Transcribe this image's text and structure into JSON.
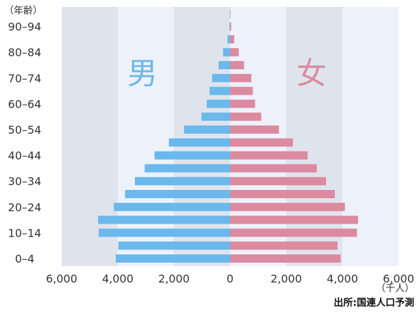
{
  "chart_data": {
    "type": "bar",
    "orientation": "horizontal",
    "layout": "population-pyramid",
    "y_unit_label": "（年齢）",
    "x_unit_label": "（千人）",
    "source": "出所:国連人口予測",
    "xlim": [
      -6000,
      6000
    ],
    "x_ticks": [
      "6,000",
      "4,000",
      "2,000",
      "0",
      "2,000",
      "4,000",
      "6,000"
    ],
    "categories": [
      "0–4",
      "5–9",
      "10–14",
      "15–19",
      "20–24",
      "25–29",
      "30–34",
      "35–39",
      "40–44",
      "45–49",
      "50–54",
      "55–59",
      "60–64",
      "65–69",
      "70–74",
      "75–79",
      "80–84",
      "85–89",
      "90–94",
      "95–99"
    ],
    "category_labels_shown": [
      "0–4",
      "10–14",
      "20–24",
      "30–34",
      "40–44",
      "50–54",
      "60–64",
      "70–74",
      "80–84",
      "90–94"
    ],
    "series": [
      {
        "name": "男",
        "side": "left",
        "color": "#6bb8ec",
        "values": [
          4070,
          3980,
          4680,
          4700,
          4140,
          3740,
          3390,
          3040,
          2690,
          2180,
          1640,
          1020,
          830,
          730,
          640,
          410,
          250,
          90,
          20,
          10
        ]
      },
      {
        "name": "女",
        "side": "right",
        "color": "#dc8aa0",
        "values": [
          3940,
          3830,
          4520,
          4560,
          4090,
          3730,
          3420,
          3090,
          2760,
          2240,
          1740,
          1110,
          890,
          810,
          760,
          500,
          310,
          150,
          40,
          10
        ]
      }
    ],
    "background_bands": [
      "#dfe4ec",
      "#edf2fa"
    ],
    "grid": false
  }
}
